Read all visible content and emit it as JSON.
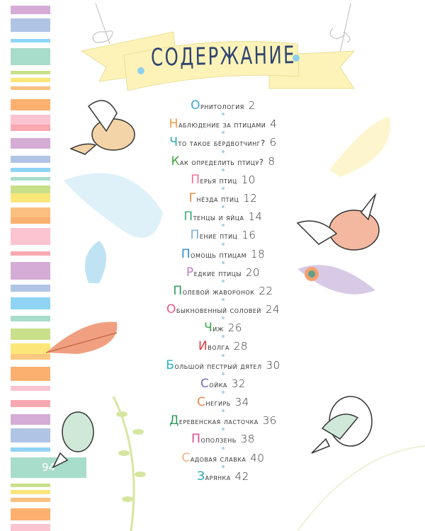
{
  "title": "СОДЕРЖАНИЕ",
  "page_number": "94",
  "colors": {
    "title": "#2f4470",
    "banner": "#fdf3b8",
    "page_tab": "#a8dccb",
    "dot": "#a8d4ec"
  },
  "entries": [
    {
      "first": "О",
      "rest": "рнитология",
      "page": "2",
      "color": "#3ba7d6"
    },
    {
      "first": "Н",
      "rest": "аблюдение за птицами",
      "page": "4",
      "color": "#f39a3c"
    },
    {
      "first": "Ч",
      "rest": "то такое бёрдвотчинг?",
      "page": "6",
      "color": "#29a6b8"
    },
    {
      "first": "К",
      "rest": "ак определить птицу?",
      "page": "8",
      "color": "#4aa64a"
    },
    {
      "first": "П",
      "rest": "ерья птиц",
      "page": "10",
      "color": "#ef6f9a"
    },
    {
      "first": "Г",
      "rest": "нёзда птиц",
      "page": "12",
      "color": "#f08a3a"
    },
    {
      "first": "П",
      "rest": "тенцы и яйца",
      "page": "14",
      "color": "#3aa878"
    },
    {
      "first": "П",
      "rest": "ение птиц",
      "page": "16",
      "color": "#7aaee0"
    },
    {
      "first": "П",
      "rest": "омощь птицам",
      "page": "18",
      "color": "#2e8fd0"
    },
    {
      "first": "Р",
      "rest": "едкие птицы",
      "page": "20",
      "color": "#c27ad0"
    },
    {
      "first": "П",
      "rest": "олевой жаворонок",
      "page": "22",
      "color": "#2f9a5a"
    },
    {
      "first": "О",
      "rest": "быкновенный соловей",
      "page": "24",
      "color": "#ef5a84"
    },
    {
      "first": "Ч",
      "rest": "иж",
      "page": "26",
      "color": "#3aa64a"
    },
    {
      "first": "И",
      "rest": "волга",
      "page": "28",
      "color": "#e03a3a"
    },
    {
      "first": "Б",
      "rest": "ольшой пёстрый дятел",
      "page": "30",
      "color": "#2ab0c8"
    },
    {
      "first": "С",
      "rest": "ойка",
      "page": "32",
      "color": "#7a6ac0"
    },
    {
      "first": "С",
      "rest": "негирь",
      "page": "34",
      "color": "#f0844a"
    },
    {
      "first": "Д",
      "rest": "еревенская ласточка",
      "page": "36",
      "color": "#2f9a5a"
    },
    {
      "first": "П",
      "rest": "оползень",
      "page": "38",
      "color": "#e0448a"
    },
    {
      "first": "С",
      "rest": "адовая славка",
      "page": "40",
      "color": "#f4b080"
    },
    {
      "first": "З",
      "rest": "арянка",
      "page": "42",
      "color": "#29a6b8"
    }
  ]
}
